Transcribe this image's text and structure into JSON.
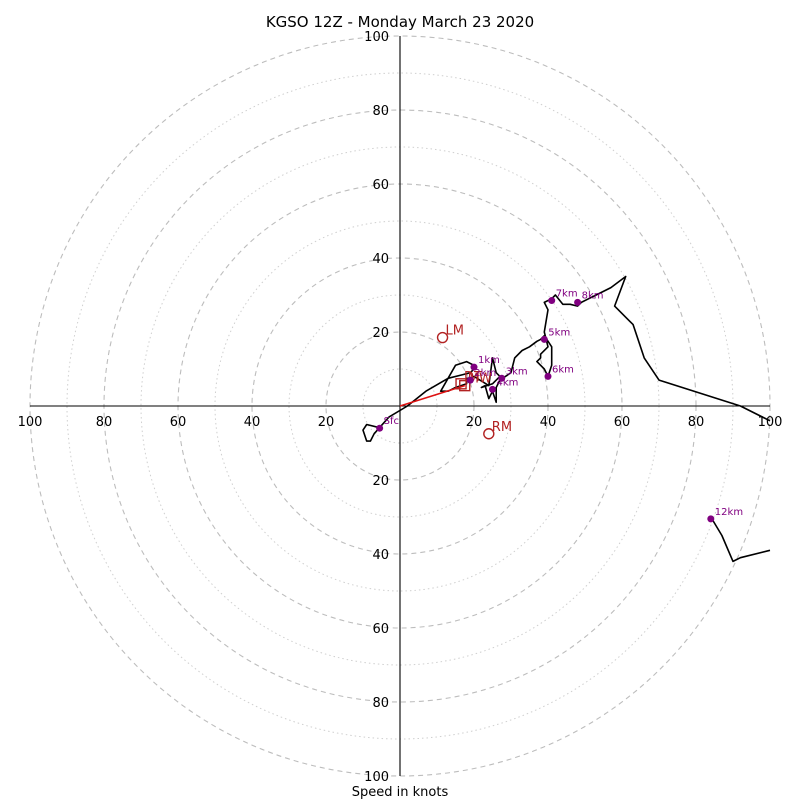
{
  "chart_data": {
    "type": "scatter",
    "title": "KGSO 12Z - Monday March 23 2020",
    "xlabel": "Speed in knots",
    "ylabel": "",
    "xlim": [
      -100,
      100
    ],
    "ylim": [
      -100,
      100
    ],
    "rings": {
      "major": [
        20,
        40,
        60,
        80,
        100
      ],
      "minor": [
        10,
        30,
        50,
        70,
        90
      ]
    },
    "x_tick_labels": [
      "100",
      "80",
      "60",
      "40",
      "20",
      "20",
      "40",
      "60",
      "80",
      "100"
    ],
    "y_tick_labels": [
      "100",
      "80",
      "60",
      "40",
      "20",
      "20",
      "40",
      "60",
      "80",
      "100"
    ],
    "hodograph": {
      "segments": [
        [
          [
            -5,
            -6
          ],
          [
            -9,
            -5
          ],
          [
            -10,
            -6.5
          ],
          [
            -9,
            -9.5
          ],
          [
            -8,
            -9.5
          ],
          [
            -7,
            -7.5
          ],
          [
            -3,
            -3
          ],
          [
            2,
            0
          ],
          [
            7,
            4
          ],
          [
            13,
            7.5
          ],
          [
            17,
            8.5
          ],
          [
            19,
            9
          ],
          [
            20,
            10
          ],
          [
            20,
            11
          ],
          [
            18,
            12
          ],
          [
            15,
            11
          ],
          [
            11,
            4
          ],
          [
            13,
            4
          ],
          [
            15,
            5
          ],
          [
            18,
            6
          ],
          [
            18,
            7.5
          ],
          [
            19,
            7.5
          ],
          [
            20,
            8
          ],
          [
            24,
            5.5
          ],
          [
            25,
            13
          ],
          [
            26,
            9
          ],
          [
            27,
            8
          ],
          [
            25,
            6
          ],
          [
            22,
            5
          ],
          [
            23,
            5.5
          ],
          [
            24,
            2
          ],
          [
            25,
            4
          ],
          [
            26,
            1
          ],
          [
            26,
            5
          ],
          [
            27,
            7
          ],
          [
            30,
            9
          ],
          [
            31,
            13
          ],
          [
            33,
            15
          ],
          [
            35,
            16
          ],
          [
            37,
            17.5
          ],
          [
            38,
            18
          ],
          [
            39,
            19
          ],
          [
            41,
            16
          ],
          [
            41,
            11
          ],
          [
            40,
            8
          ],
          [
            39,
            10
          ],
          [
            37,
            12
          ],
          [
            38,
            13
          ],
          [
            38,
            14
          ],
          [
            40,
            16
          ],
          [
            39,
            20
          ],
          [
            40,
            26
          ],
          [
            39,
            28
          ],
          [
            41,
            29
          ],
          [
            42,
            30
          ],
          [
            44,
            27.5
          ],
          [
            46,
            27.5
          ],
          [
            48,
            27
          ],
          [
            49,
            28
          ],
          [
            51,
            29
          ],
          [
            52,
            29.5
          ],
          [
            57,
            32
          ],
          [
            61,
            35
          ],
          [
            58,
            27
          ],
          [
            62,
            23
          ],
          [
            63,
            22
          ],
          [
            66,
            13
          ],
          [
            70,
            7
          ],
          [
            92,
            0
          ],
          [
            100,
            -4
          ]
        ],
        [
          [
            84,
            -30
          ],
          [
            87,
            -35
          ],
          [
            90,
            -42
          ],
          [
            92,
            -41
          ],
          [
            100,
            -39
          ]
        ]
      ]
    },
    "height_points": [
      {
        "label": "Sfc",
        "u": -5.5,
        "v": -6
      },
      {
        "label": "1km",
        "u": 20,
        "v": 10.5
      },
      {
        "label": "2km",
        "u": 19,
        "v": 7
      },
      {
        "label": "3km",
        "u": 27.5,
        "v": 7.5
      },
      {
        "label": "4km",
        "u": 25,
        "v": 4.5
      },
      {
        "label": "5km",
        "u": 39,
        "v": 18
      },
      {
        "label": "6km",
        "u": 40,
        "v": 8
      },
      {
        "label": "7km",
        "u": 41,
        "v": 28.5
      },
      {
        "label": "8km",
        "u": 48,
        "v": 28
      },
      {
        "label": "12km",
        "u": 84,
        "v": -30.5
      }
    ],
    "storm_motion": {
      "mean_wind_vector": {
        "from": [
          0,
          0
        ],
        "to": [
          17.5,
          5.5
        ]
      },
      "markers": [
        {
          "label": "LM",
          "u": 11.5,
          "v": 18.5,
          "shape": "circle"
        },
        {
          "label": "RM",
          "u": 24,
          "v": -7.5,
          "shape": "circle"
        },
        {
          "label": "MW",
          "u": 17.5,
          "v": 5.5,
          "shape": "square"
        },
        {
          "label": "DT",
          "u": 16.5,
          "v": 6,
          "shape": "square"
        }
      ]
    }
  }
}
